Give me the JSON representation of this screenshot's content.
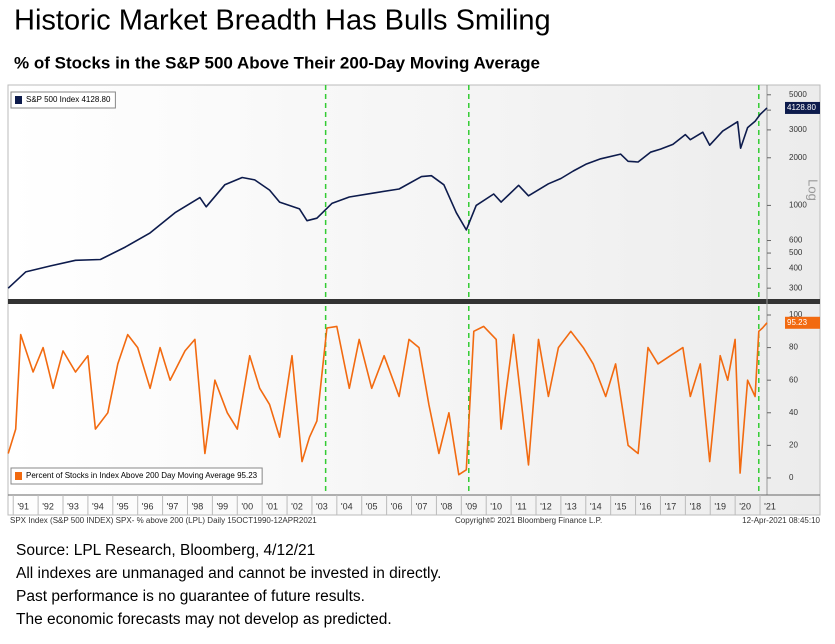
{
  "header": {
    "title": "Historic Market Breadth Has Bulls Smiling",
    "subtitle": "% of Stocks in the S&P 500 Above Their 200-Day Moving Average"
  },
  "chart_data": [
    {
      "type": "line",
      "log_scale": true,
      "y_axis_label": "Log",
      "x": [
        1990.8,
        1991.5,
        1992.5,
        1993.5,
        1994.5,
        1995.5,
        1996.5,
        1997.5,
        1998.5,
        1998.75,
        1999.5,
        2000.2,
        2000.7,
        2001.3,
        2001.7,
        2002.5,
        2002.8,
        2003.2,
        2003.8,
        2004.5,
        2005.5,
        2006.5,
        2007.4,
        2007.8,
        2008.3,
        2008.8,
        2009.2,
        2009.6,
        2010.3,
        2010.6,
        2011.3,
        2011.7,
        2012.5,
        2013.0,
        2013.5,
        2014.0,
        2014.6,
        2015.4,
        2015.7,
        2016.1,
        2016.6,
        2017.0,
        2017.5,
        2018.0,
        2018.2,
        2018.7,
        2018.98,
        2019.5,
        2020.1,
        2020.22,
        2020.5,
        2020.8,
        2021.0,
        2021.28
      ],
      "series": [
        {
          "name": "S&P 500 Index",
          "color": "#0d1b4c",
          "values": [
            300,
            380,
            415,
            450,
            455,
            545,
            670,
            900,
            1120,
            980,
            1350,
            1500,
            1450,
            1250,
            1050,
            950,
            800,
            830,
            1030,
            1130,
            1200,
            1270,
            1520,
            1540,
            1350,
            900,
            700,
            1000,
            1180,
            1050,
            1340,
            1150,
            1370,
            1480,
            1650,
            1820,
            1970,
            2110,
            1900,
            1880,
            2170,
            2270,
            2430,
            2800,
            2600,
            2900,
            2400,
            2950,
            3380,
            2300,
            3100,
            3400,
            3750,
            4128.8
          ],
          "value_labels": [
            null,
            null,
            null,
            null,
            null,
            null,
            null,
            null,
            null,
            null,
            null,
            null,
            null,
            null,
            null,
            null,
            null,
            null,
            null,
            null,
            null,
            null,
            null,
            null,
            null,
            null,
            null,
            null,
            null,
            null,
            null,
            null,
            null,
            null,
            null,
            null,
            null,
            null,
            null,
            null,
            null,
            null,
            null,
            null,
            null,
            null,
            null,
            null,
            null,
            null,
            null,
            null,
            null,
            "4128.80"
          ]
        }
      ],
      "xlim": [
        1990.79,
        2021.28
      ],
      "ylim": [
        260,
        5600
      ],
      "yticks": [
        300,
        400,
        500,
        600,
        1000,
        2000,
        3000,
        4000,
        5000
      ],
      "highlight_x": [
        2003.55,
        2009.3,
        2020.95
      ],
      "highlight_color": "#33cc33"
    },
    {
      "type": "line",
      "x": [
        1990.8,
        1991.1,
        1991.3,
        1991.8,
        1992.2,
        1992.6,
        1993.0,
        1993.5,
        1994.0,
        1994.3,
        1994.8,
        1995.2,
        1995.6,
        1996.0,
        1996.5,
        1996.9,
        1997.3,
        1997.9,
        1998.3,
        1998.7,
        1999.1,
        1999.6,
        2000.0,
        2000.5,
        2000.9,
        2001.3,
        2001.7,
        2002.2,
        2002.6,
        2002.9,
        2003.2,
        2003.6,
        2004.0,
        2004.5,
        2004.9,
        2005.4,
        2005.9,
        2006.5,
        2006.9,
        2007.3,
        2007.7,
        2008.1,
        2008.5,
        2008.9,
        2009.2,
        2009.5,
        2009.9,
        2010.4,
        2010.6,
        2011.1,
        2011.7,
        2012.1,
        2012.5,
        2012.9,
        2013.4,
        2013.9,
        2014.3,
        2014.8,
        2015.2,
        2015.7,
        2016.1,
        2016.5,
        2016.9,
        2017.4,
        2017.9,
        2018.2,
        2018.6,
        2018.98,
        2019.4,
        2019.7,
        2020.0,
        2020.2,
        2020.5,
        2020.8,
        2020.95,
        2021.1,
        2021.28
      ],
      "series": [
        {
          "name": "Percent of Stocks in Index Above 200 Day Moving Average",
          "color": "#f26a10",
          "values": [
            15,
            30,
            88,
            65,
            80,
            55,
            78,
            65,
            75,
            30,
            40,
            70,
            88,
            80,
            55,
            80,
            60,
            78,
            85,
            15,
            60,
            40,
            30,
            75,
            55,
            45,
            25,
            75,
            10,
            25,
            35,
            92,
            93,
            55,
            85,
            55,
            75,
            50,
            85,
            80,
            45,
            15,
            40,
            2,
            5,
            90,
            93,
            85,
            30,
            88,
            8,
            85,
            50,
            80,
            90,
            80,
            70,
            50,
            70,
            20,
            15,
            80,
            70,
            75,
            80,
            50,
            70,
            10,
            75,
            60,
            85,
            3,
            60,
            50,
            90,
            92,
            95.23
          ]
        }
      ],
      "xlim": [
        1990.79,
        2021.28
      ],
      "ylim": [
        -7.4,
        104.3
      ],
      "yticks": [
        0,
        20,
        40,
        60,
        80,
        100
      ],
      "xticks": [
        {
          "value": 1991,
          "label": "'91"
        },
        {
          "value": 1992,
          "label": "'92"
        },
        {
          "value": 1993,
          "label": "'93"
        },
        {
          "value": 1994,
          "label": "'94"
        },
        {
          "value": 1995,
          "label": "'95"
        },
        {
          "value": 1996,
          "label": "'96"
        },
        {
          "value": 1997,
          "label": "'97"
        },
        {
          "value": 1998,
          "label": "'98"
        },
        {
          "value": 1999,
          "label": "'99"
        },
        {
          "value": 2000,
          "label": "'00"
        },
        {
          "value": 2001,
          "label": "'01"
        },
        {
          "value": 2002,
          "label": "'02"
        },
        {
          "value": 2003,
          "label": "'03"
        },
        {
          "value": 2004,
          "label": "'04"
        },
        {
          "value": 2005,
          "label": "'05"
        },
        {
          "value": 2006,
          "label": "'06"
        },
        {
          "value": 2007,
          "label": "'07"
        },
        {
          "value": 2008,
          "label": "'08"
        },
        {
          "value": 2009,
          "label": "'09"
        },
        {
          "value": 2010,
          "label": "'10"
        },
        {
          "value": 2011,
          "label": "'11"
        },
        {
          "value": 2012,
          "label": "'12"
        },
        {
          "value": 2013,
          "label": "'13"
        },
        {
          "value": 2014,
          "label": "'14"
        },
        {
          "value": 2015,
          "label": "'15"
        },
        {
          "value": 2016,
          "label": "'16"
        },
        {
          "value": 2017,
          "label": "'17"
        },
        {
          "value": 2018,
          "label": "'18"
        },
        {
          "value": 2019,
          "label": "'19"
        },
        {
          "value": 2020,
          "label": "'20"
        },
        {
          "value": 2021,
          "label": "'21"
        }
      ],
      "highlight_x": [
        2003.55,
        2009.3,
        2020.95
      ],
      "highlight_color": "#33cc33"
    }
  ],
  "footer": {
    "left": "SPX Index (S&P 500 INDEX) SPX- % above 200 (LPL)  Daily 15OCT1990-12APR2021",
    "center": "Copyright© 2021 Bloomberg Finance L.P.",
    "right": "12-Apr-2021 08:45:10"
  },
  "notes": [
    "Source: LPL Research, Bloomberg, 4/12/21",
    "All indexes are unmanaged and cannot be invested in directly.",
    "Past performance is no guarantee of future results.",
    "The economic forecasts may not develop as predicted."
  ]
}
